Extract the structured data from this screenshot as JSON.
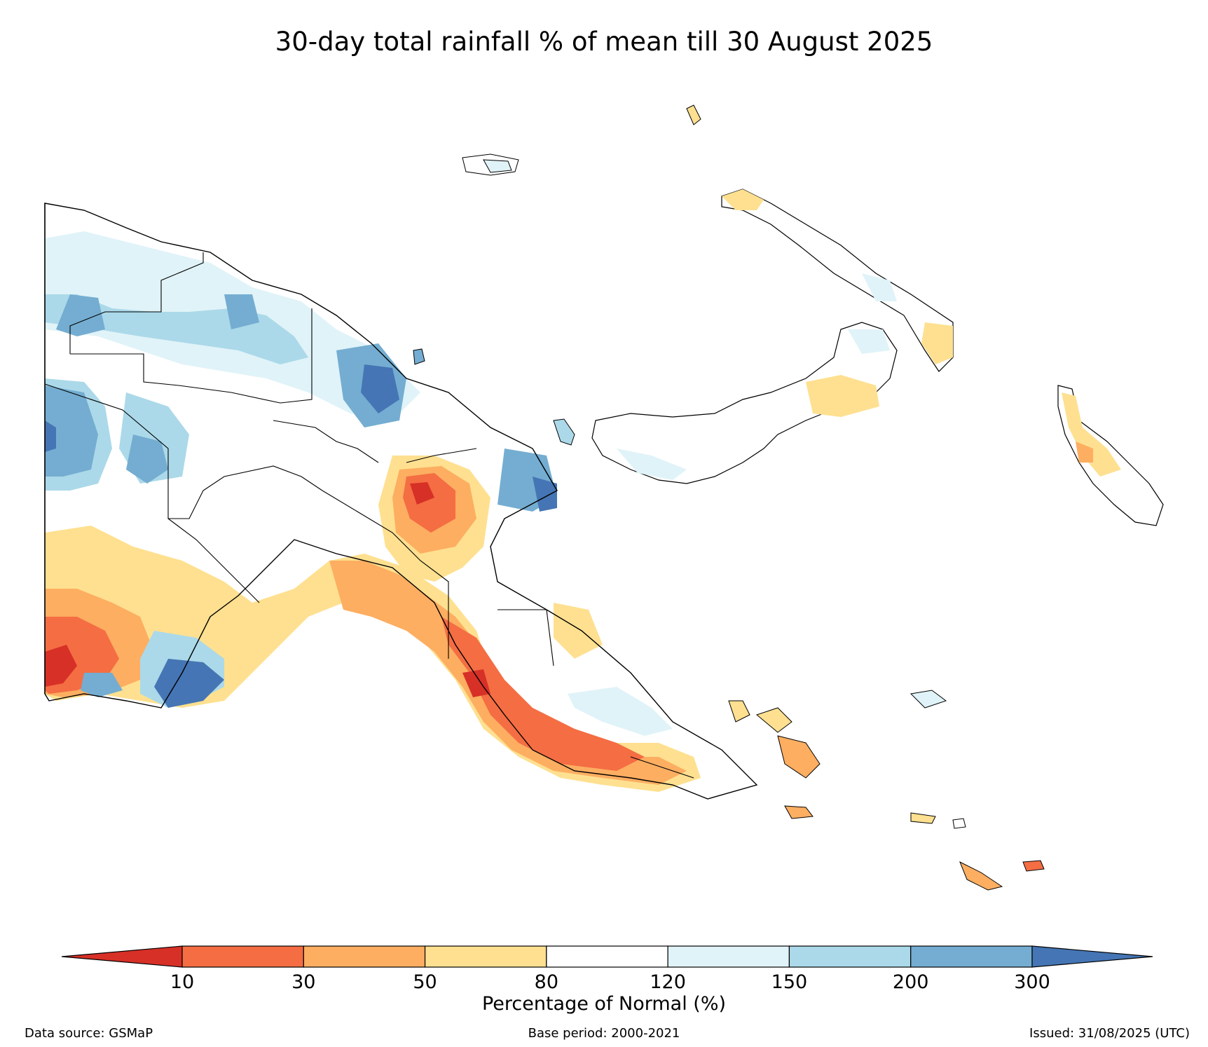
{
  "title": "30-day total rainfall % of mean till 30 August 2025",
  "legend": {
    "label": "Percentage of Normal (%)",
    "ticks": [
      "10",
      "30",
      "50",
      "80",
      "120",
      "150",
      "200",
      "300"
    ],
    "colors": [
      "#d73027",
      "#f46d43",
      "#fdae61",
      "#fee090",
      "#ffffff",
      "#e0f3f8",
      "#abd9e9",
      "#74add1",
      "#4575b4"
    ]
  },
  "footer": {
    "source": "Data source: GSMaP",
    "base": "Base period: 2000-2021",
    "issued": "Issued: 31/08/2025 (UTC)"
  }
}
